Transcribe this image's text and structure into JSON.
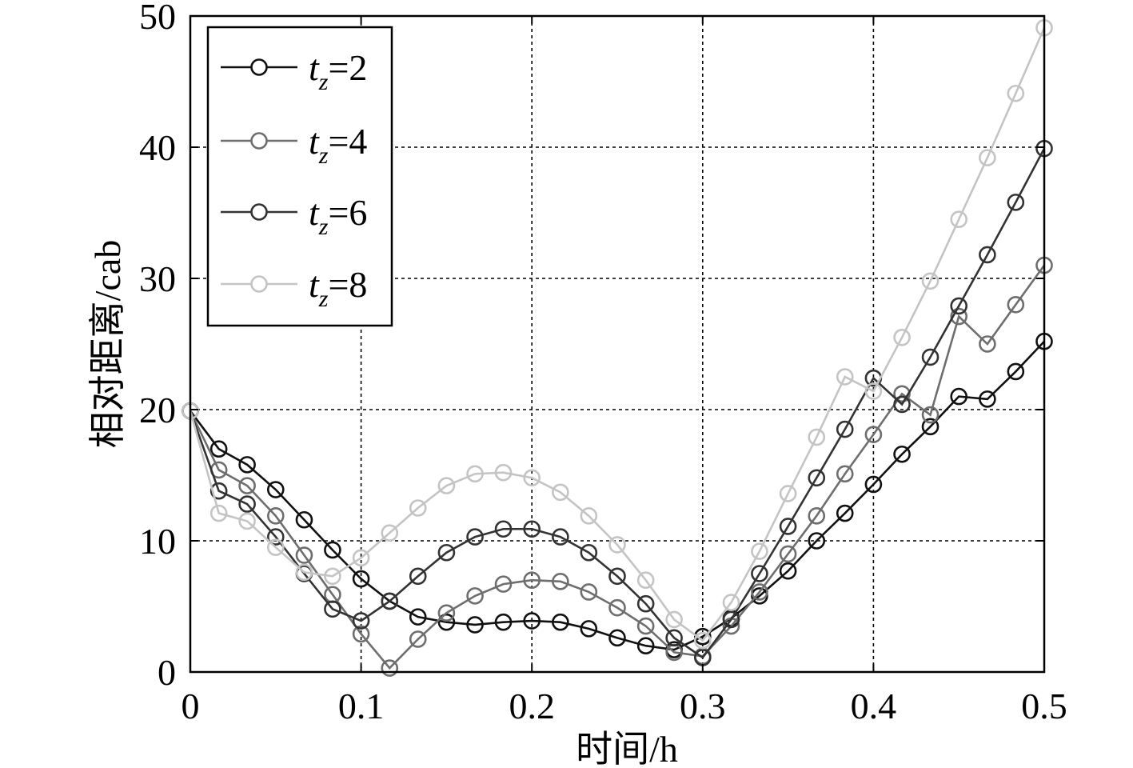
{
  "chart_data": {
    "type": "line",
    "title": "",
    "xlabel": "时间/h",
    "ylabel": "相对距离/cab",
    "xlim": [
      0,
      0.5
    ],
    "ylim": [
      0,
      50
    ],
    "grid": true,
    "legend_position": "top-left",
    "x_ticks": [
      "0",
      "0.1",
      "0.2",
      "0.3",
      "0.4",
      "0.5"
    ],
    "y_ticks": [
      "0",
      "10",
      "20",
      "30",
      "40",
      "50"
    ],
    "marker": "open-circle",
    "x": [
      0,
      0.0167,
      0.0333,
      0.05,
      0.0667,
      0.0833,
      0.1,
      0.1167,
      0.1333,
      0.15,
      0.1667,
      0.1833,
      0.2,
      0.2167,
      0.2333,
      0.25,
      0.2667,
      0.2833,
      0.3,
      0.3167,
      0.3333,
      0.35,
      0.3667,
      0.3833,
      0.4,
      0.4167,
      0.4333,
      0.45,
      0.4667,
      0.4833,
      0.5
    ],
    "series": [
      {
        "name_base": "t",
        "name_sub": "z",
        "name_value": "=2",
        "color": "#111111",
        "values": [
          19.9,
          17.0,
          15.8,
          13.9,
          11.6,
          9.3,
          7.1,
          5.4,
          4.2,
          3.8,
          3.6,
          3.8,
          3.9,
          3.8,
          3.3,
          2.6,
          2.0,
          1.7,
          2.7,
          4.1,
          5.8,
          7.7,
          10.0,
          12.1,
          14.3,
          16.6,
          18.7,
          21.0,
          20.8,
          22.9,
          25.2
        ]
      },
      {
        "name_base": "t",
        "name_sub": "z",
        "name_value": "=4",
        "color": "#6e6e6e",
        "values": [
          19.9,
          15.4,
          14.2,
          11.9,
          8.9,
          5.9,
          2.9,
          0.3,
          2.5,
          4.5,
          5.8,
          6.7,
          7.0,
          6.9,
          6.1,
          4.9,
          3.5,
          1.5,
          1.2,
          3.5,
          6.1,
          9.0,
          11.9,
          15.1,
          18.1,
          21.2,
          19.6,
          27.1,
          25.0,
          28.0,
          31.0
        ]
      },
      {
        "name_base": "t",
        "name_sub": "z",
        "name_value": "=6",
        "color": "#333333",
        "values": [
          19.9,
          13.8,
          12.8,
          10.3,
          7.5,
          4.8,
          3.9,
          5.4,
          7.3,
          9.1,
          10.3,
          10.9,
          10.9,
          10.3,
          9.1,
          7.3,
          5.2,
          2.6,
          1.1,
          4.0,
          7.5,
          11.1,
          14.8,
          18.5,
          22.4,
          20.4,
          24.0,
          27.9,
          31.8,
          35.8,
          39.9
        ]
      },
      {
        "name_base": "t",
        "name_sub": "z",
        "name_value": "=8",
        "color": "#c4c4c4",
        "values": [
          19.9,
          12.1,
          11.5,
          9.5,
          7.6,
          7.3,
          8.7,
          10.6,
          12.5,
          14.2,
          15.1,
          15.2,
          14.8,
          13.7,
          11.9,
          9.7,
          7.0,
          4.0,
          2.4,
          5.3,
          9.2,
          13.6,
          17.9,
          22.5,
          21.4,
          25.5,
          29.8,
          34.5,
          39.2,
          44.1,
          49.1
        ]
      }
    ]
  }
}
